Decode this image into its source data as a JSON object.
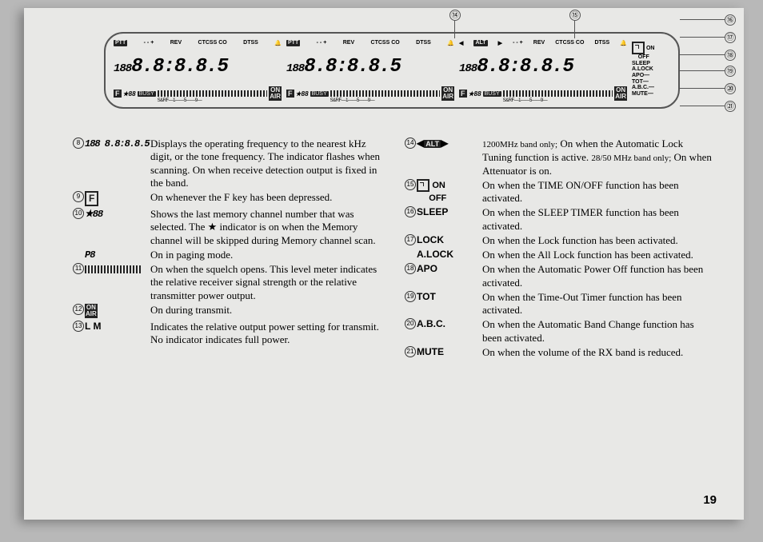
{
  "page_number": "19",
  "lcd": {
    "top_indicators": [
      "PTT",
      "- - +",
      "CTCSS CO",
      "REV",
      "DTSS"
    ],
    "alt_tag": "ALT",
    "freq_segments_small": "188",
    "freq_segments_big": "8.8:8.8.5",
    "f_label": "F",
    "mem_label": "★88",
    "busy_label": "BUSY",
    "onair_top": "ON",
    "onair_bot": "AIR",
    "lm_label": "L M",
    "side_labels": [
      "ON",
      "OFF",
      "SLEEP",
      "A.LOCK",
      "APO",
      "TOT",
      "A.B.C.",
      "MUTE"
    ]
  },
  "left_items": [
    {
      "num": "8",
      "label": "188 8.8:8.8.5",
      "label_style": "seg",
      "desc": "Displays the operating frequency to the nearest kHz digit, or the tone frequency. The indicator flashes when scanning. On when receive detection output is fixed in the band."
    },
    {
      "num": "9",
      "label": "F",
      "label_style": "fbox",
      "desc": "On whenever the F key has been depressed."
    },
    {
      "num": "10",
      "label": "★88",
      "label_style": "seg",
      "desc": "Shows the last memory channel number that was selected. The ★ indicator is on when the Memory channel will be skipped during Memory channel scan."
    },
    {
      "num": "",
      "label": "P8",
      "label_style": "seg",
      "desc": "On in paging mode."
    },
    {
      "num": "11",
      "label": "",
      "label_style": "meter",
      "desc": "On when the squelch opens. This level meter indicates the relative receiver signal strength or the relative transmitter power output."
    },
    {
      "num": "12",
      "label": "ON AIR",
      "label_style": "onair",
      "desc": "On during transmit."
    },
    {
      "num": "13",
      "label": "L M",
      "label_style": "bold",
      "desc": "Indicates the relative output power setting for transmit.  No indicator indicates full power."
    }
  ],
  "right_items": [
    {
      "num": "14",
      "label": "◀ALT▶",
      "label_style": "alt",
      "desc": "1200MHz band only; On when the Automatic Lock Tuning function is active. 28/50 MHz band only; On when Attenuator is on.",
      "desc_prefix_small": true
    },
    {
      "num": "15",
      "label": "ON OFF",
      "label_style": "clock",
      "desc": "On when the TIME ON/OFF  function has been activated."
    },
    {
      "num": "16",
      "label": "SLEEP",
      "label_style": "bold",
      "desc": "On when the SLEEP TIMER function has been activated."
    },
    {
      "num": "17",
      "label": "LOCK",
      "label_style": "bold",
      "desc": "On when the Lock function has been activated."
    },
    {
      "num": "",
      "label": "A.LOCK",
      "label_style": "bold",
      "desc": "On when the All Lock function has been activated."
    },
    {
      "num": "18",
      "label": "APO",
      "label_style": "bold",
      "desc": "On when the Automatic Power Off function has been activated."
    },
    {
      "num": "19",
      "label": "TOT",
      "label_style": "bold",
      "desc": "On when the Time-Out Timer function has been activated."
    },
    {
      "num": "20",
      "label": "A.B.C.",
      "label_style": "bold",
      "desc": "On when the Automatic Band Change function has been activated."
    },
    {
      "num": "21",
      "label": "MUTE",
      "label_style": "bold",
      "desc": "On when the volume of the RX band is reduced."
    }
  ]
}
